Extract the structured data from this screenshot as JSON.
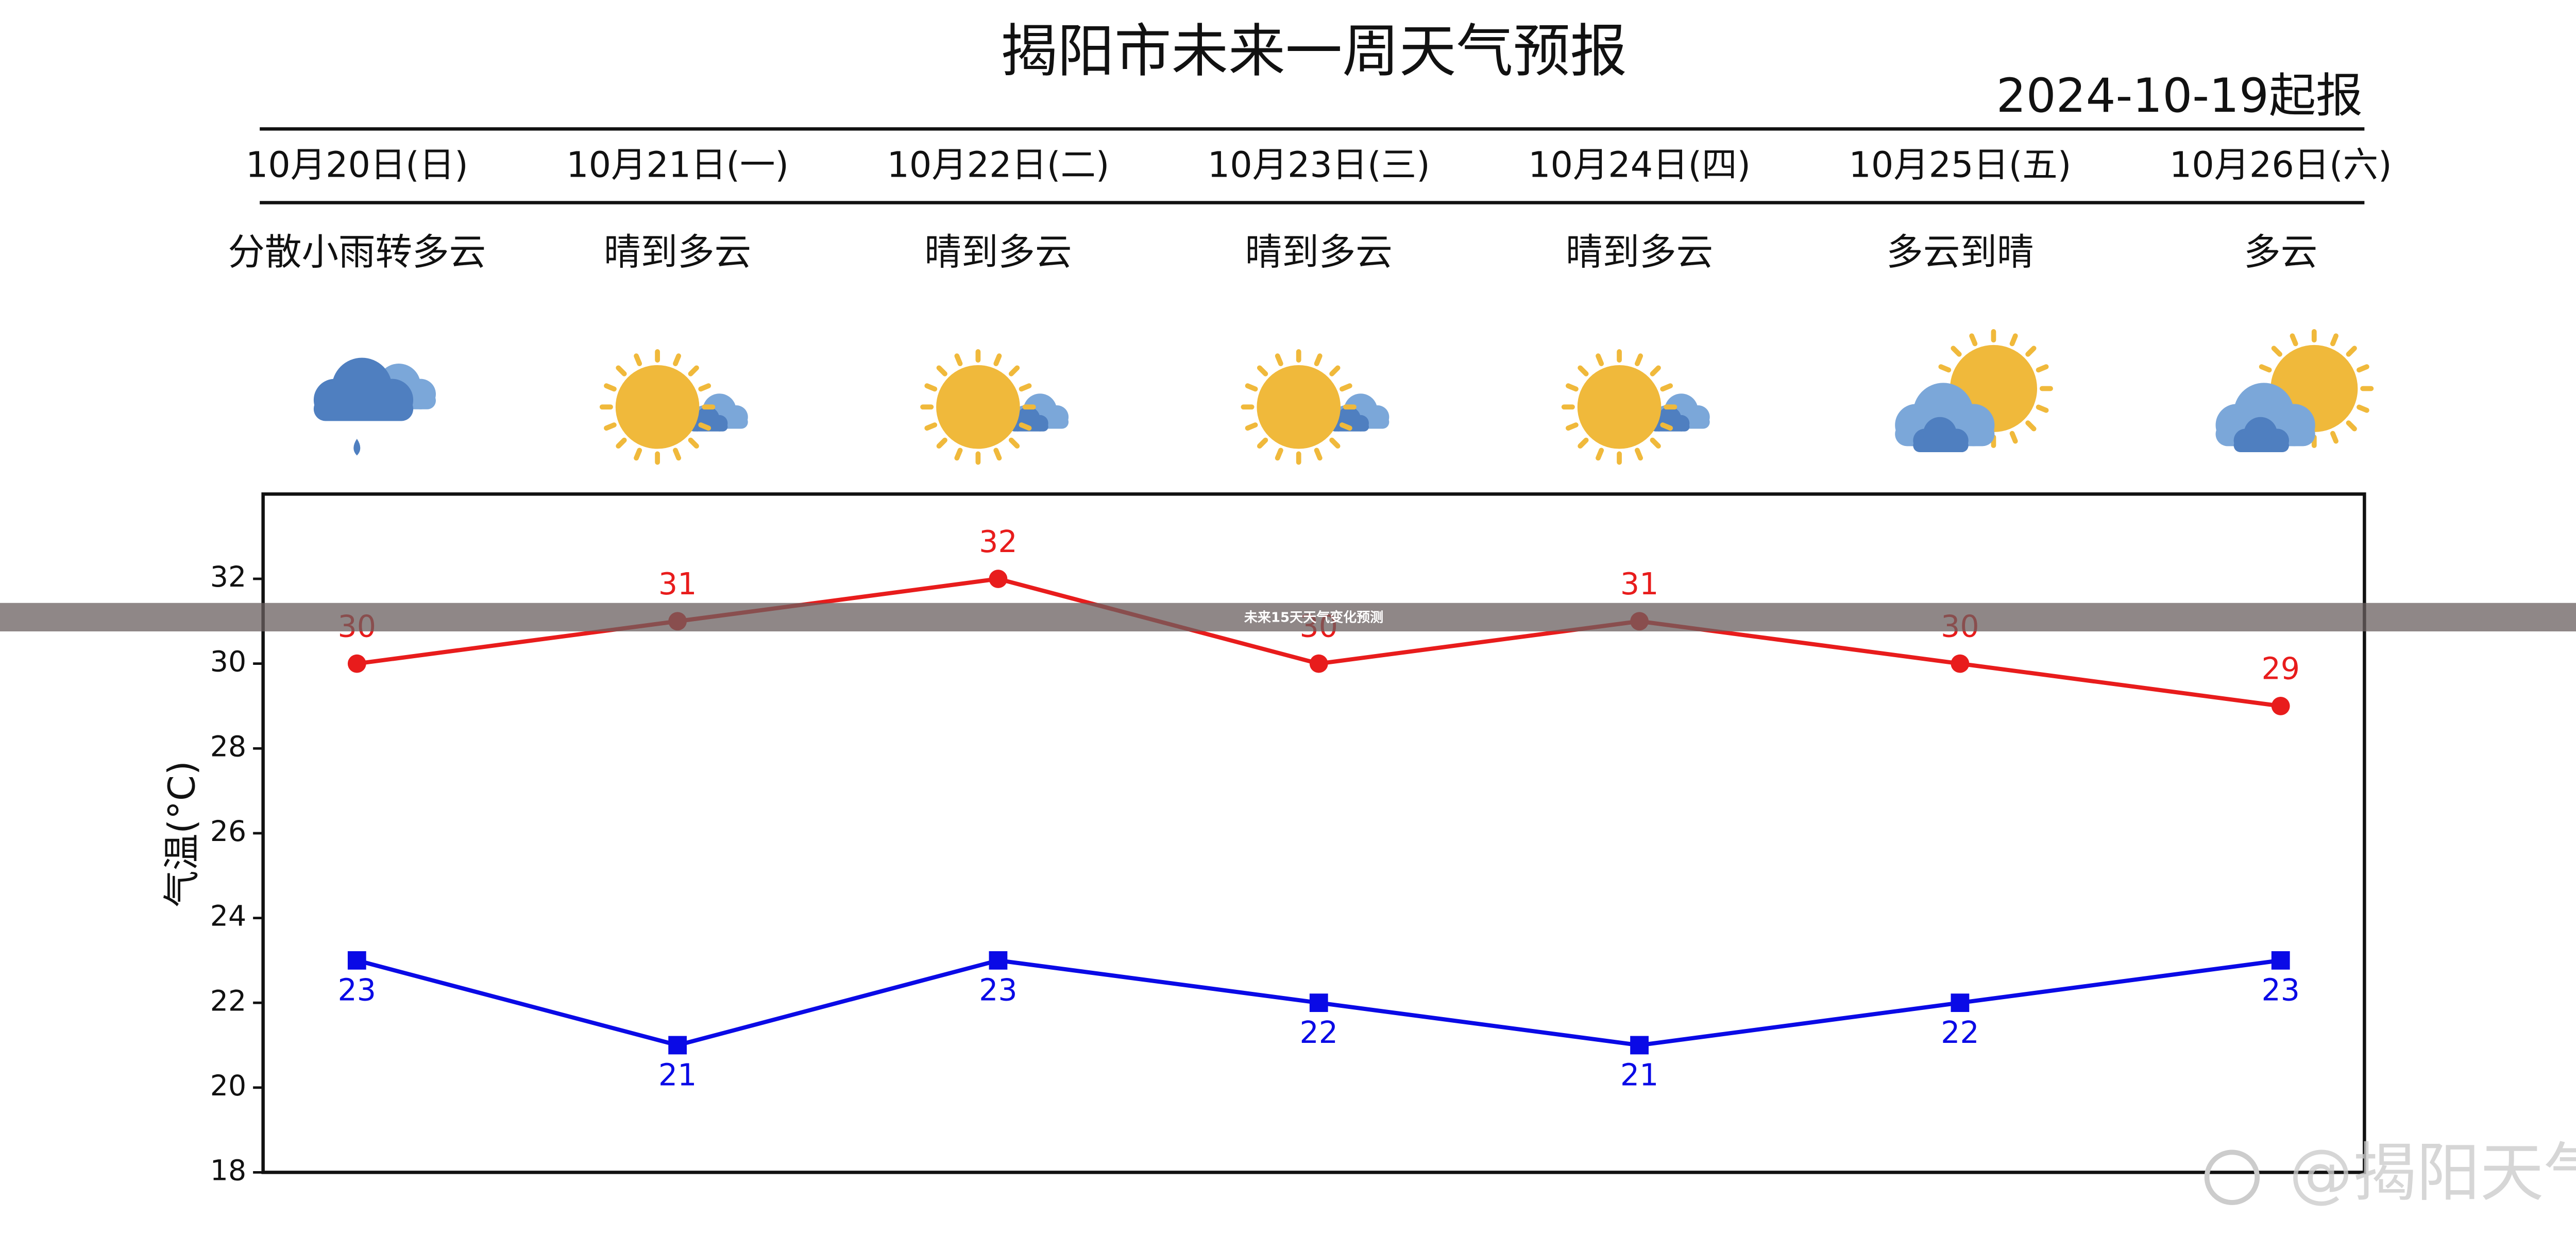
{
  "chart_data": {
    "type": "line",
    "title": "揭阳市未来一周天气预报",
    "subtitle": "2024-10-19起报",
    "categories": [
      "10月20日(日)",
      "10月21日(一)",
      "10月22日(二)",
      "10月23日(三)",
      "10月24日(四)",
      "10月25日(五)",
      "10月26日(六)"
    ],
    "weather": [
      "分散小雨转多云",
      "晴到多云",
      "晴到多云",
      "晴到多云",
      "晴到多云",
      "多云到晴",
      "多云"
    ],
    "ylabel": "气温(°C)",
    "ylim": [
      18,
      34
    ],
    "yticks": [
      18,
      20,
      22,
      24,
      26,
      28,
      30,
      32
    ],
    "series": [
      {
        "color": "#e81c1c",
        "marker": "circle",
        "label_position": "above",
        "values": [
          30,
          31,
          32,
          30,
          31,
          30,
          29
        ]
      },
      {
        "color": "#0a0ae6",
        "marker": "square",
        "label_position": "below",
        "values": [
          23,
          21,
          23,
          22,
          21,
          22,
          23
        ]
      }
    ]
  },
  "banner": "未来15天天气变化预测",
  "watermark": "@揭阳天气"
}
